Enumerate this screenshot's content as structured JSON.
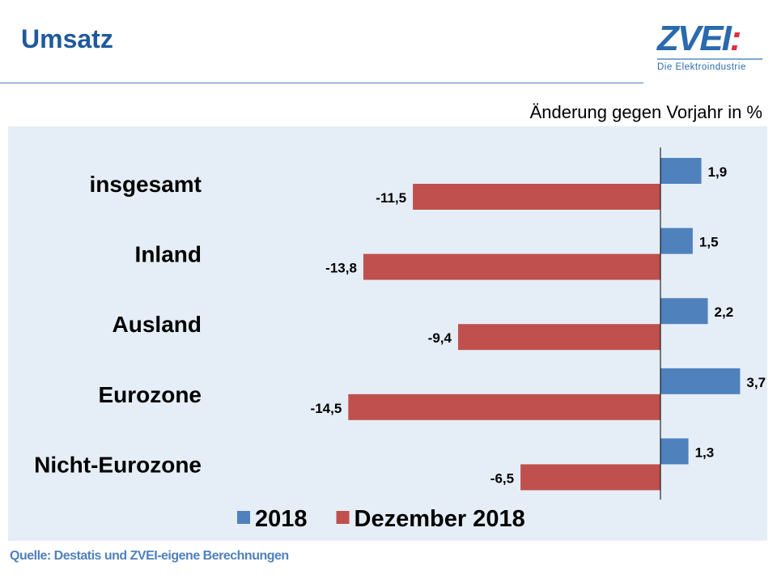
{
  "header": {
    "title": "Umsatz",
    "logo_text": "ZVEI:",
    "logo_subtitle": "Die Elektroindustrie"
  },
  "chart_data": {
    "type": "bar",
    "orientation": "horizontal",
    "unit_label": "Änderung gegen Vorjahr in %",
    "categories": [
      "insgesamt",
      "Inland",
      "Ausland",
      "Eurozone",
      "Nicht-Eurozone"
    ],
    "series": [
      {
        "name": "2018",
        "color": "#4f81bd",
        "values": [
          1.9,
          1.5,
          2.2,
          3.7,
          1.3
        ],
        "labels": [
          "1,9",
          "1,5",
          "2,2",
          "3,7",
          "1,3"
        ]
      },
      {
        "name": "Dezember 2018",
        "color": "#c0504d",
        "values": [
          -11.5,
          -13.8,
          -9.4,
          -14.5,
          -6.5
        ],
        "labels": [
          "-11,5",
          "-13,8",
          "-9,4",
          "-14,5",
          "-6,5"
        ]
      }
    ],
    "legend_position": "bottom",
    "grid": false
  },
  "footer": {
    "source": "Quelle: Destatis und ZVEI-eigene Berechnungen"
  }
}
